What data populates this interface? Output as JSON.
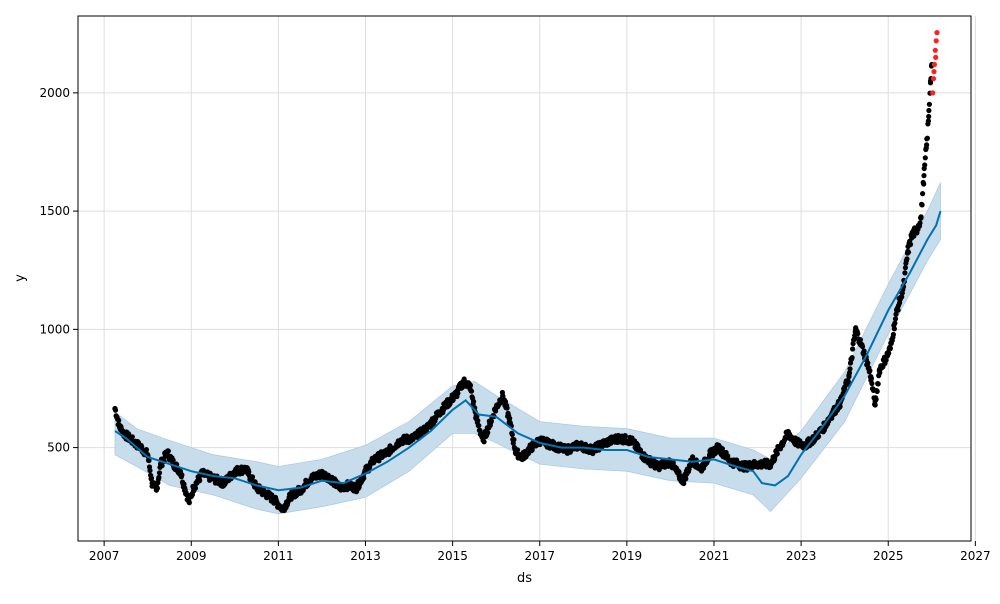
{
  "chart_data": {
    "type": "scatter",
    "title": "",
    "xlabel": "ds",
    "ylabel": "y",
    "xlim": [
      2006.4,
      2026.9
    ],
    "ylim": [
      105,
      2325
    ],
    "grid": true,
    "x_ticks": [
      "2007",
      "2009",
      "2011",
      "2013",
      "2015",
      "2017",
      "2019",
      "2021",
      "2023",
      "2025",
      "2027"
    ],
    "y_ticks": [
      "500",
      "1000",
      "1500",
      "2000"
    ],
    "colors": {
      "observed": "#000000",
      "outlier": "#ff2020",
      "forecast": "#0072b2",
      "interval": "#c6dcec"
    },
    "series": [
      {
        "kind": "observed",
        "points": [
          [
            2007.25,
            665
          ],
          [
            2007.35,
            590
          ],
          [
            2007.45,
            560
          ],
          [
            2007.55,
            545
          ],
          [
            2007.7,
            520
          ],
          [
            2007.85,
            500
          ],
          [
            2008.0,
            470
          ],
          [
            2008.1,
            350
          ],
          [
            2008.2,
            320
          ],
          [
            2008.3,
            430
          ],
          [
            2008.45,
            480
          ],
          [
            2008.6,
            430
          ],
          [
            2008.75,
            400
          ],
          [
            2008.85,
            330
          ],
          [
            2008.95,
            270
          ],
          [
            2009.05,
            330
          ],
          [
            2009.25,
            390
          ],
          [
            2009.5,
            370
          ],
          [
            2009.75,
            350
          ],
          [
            2010.0,
            400
          ],
          [
            2010.25,
            410
          ],
          [
            2010.5,
            330
          ],
          [
            2010.75,
            300
          ],
          [
            2010.9,
            280
          ],
          [
            2011.1,
            240
          ],
          [
            2011.3,
            300
          ],
          [
            2011.5,
            320
          ],
          [
            2011.75,
            370
          ],
          [
            2012.0,
            390
          ],
          [
            2012.2,
            370
          ],
          [
            2012.4,
            330
          ],
          [
            2012.6,
            340
          ],
          [
            2012.8,
            330
          ],
          [
            2013.0,
            400
          ],
          [
            2013.2,
            450
          ],
          [
            2013.5,
            480
          ],
          [
            2013.8,
            530
          ],
          [
            2014.1,
            540
          ],
          [
            2014.4,
            580
          ],
          [
            2014.7,
            650
          ],
          [
            2014.9,
            690
          ],
          [
            2015.1,
            730
          ],
          [
            2015.25,
            780
          ],
          [
            2015.4,
            760
          ],
          [
            2015.55,
            620
          ],
          [
            2015.7,
            530
          ],
          [
            2015.85,
            600
          ],
          [
            2016.0,
            670
          ],
          [
            2016.15,
            720
          ],
          [
            2016.3,
            620
          ],
          [
            2016.45,
            480
          ],
          [
            2016.6,
            460
          ],
          [
            2016.8,
            500
          ],
          [
            2017.0,
            530
          ],
          [
            2017.3,
            510
          ],
          [
            2017.6,
            490
          ],
          [
            2017.9,
            510
          ],
          [
            2018.2,
            490
          ],
          [
            2018.5,
            520
          ],
          [
            2018.8,
            540
          ],
          [
            2019.1,
            530
          ],
          [
            2019.4,
            460
          ],
          [
            2019.7,
            420
          ],
          [
            2020.0,
            440
          ],
          [
            2020.2,
            380
          ],
          [
            2020.3,
            360
          ],
          [
            2020.5,
            450
          ],
          [
            2020.7,
            410
          ],
          [
            2020.9,
            470
          ],
          [
            2021.1,
            500
          ],
          [
            2021.4,
            440
          ],
          [
            2021.7,
            420
          ],
          [
            2022.0,
            430
          ],
          [
            2022.3,
            430
          ],
          [
            2022.5,
            500
          ],
          [
            2022.7,
            560
          ],
          [
            2022.9,
            520
          ],
          [
            2023.1,
            510
          ],
          [
            2023.3,
            540
          ],
          [
            2023.5,
            580
          ],
          [
            2023.7,
            640
          ],
          [
            2023.9,
            690
          ],
          [
            2024.1,
            800
          ],
          [
            2024.25,
            1000
          ],
          [
            2024.35,
            950
          ],
          [
            2024.5,
            870
          ],
          [
            2024.6,
            800
          ],
          [
            2024.7,
            680
          ],
          [
            2024.8,
            830
          ],
          [
            2024.95,
            880
          ],
          [
            2025.05,
            920
          ],
          [
            2025.2,
            1080
          ],
          [
            2025.35,
            1180
          ],
          [
            2025.45,
            1330
          ],
          [
            2025.55,
            1400
          ],
          [
            2025.65,
            1420
          ],
          [
            2025.75,
            1470
          ],
          [
            2025.82,
            1650
          ],
          [
            2025.88,
            1780
          ],
          [
            2025.93,
            1900
          ],
          [
            2025.97,
            2050
          ],
          [
            2026.0,
            2120
          ]
        ]
      },
      {
        "kind": "outlier",
        "points": [
          [
            2026.02,
            2000
          ],
          [
            2026.04,
            2060
          ],
          [
            2026.06,
            2120
          ],
          [
            2026.08,
            2180
          ],
          [
            2026.1,
            2220
          ],
          [
            2026.12,
            2255
          ],
          [
            2026.05,
            2090
          ],
          [
            2026.09,
            2150
          ]
        ]
      },
      {
        "kind": "forecast",
        "points": [
          [
            2007.25,
            570
          ],
          [
            2007.5,
            540
          ],
          [
            2007.75,
            500
          ],
          [
            2008.0,
            460
          ],
          [
            2008.5,
            430
          ],
          [
            2009.0,
            400
          ],
          [
            2009.5,
            380
          ],
          [
            2010.0,
            370
          ],
          [
            2010.5,
            340
          ],
          [
            2011.0,
            320
          ],
          [
            2011.5,
            330
          ],
          [
            2012.0,
            360
          ],
          [
            2012.5,
            350
          ],
          [
            2013.0,
            390
          ],
          [
            2013.5,
            440
          ],
          [
            2014.0,
            500
          ],
          [
            2014.5,
            570
          ],
          [
            2015.0,
            660
          ],
          [
            2015.3,
            700
          ],
          [
            2015.6,
            640
          ],
          [
            2016.0,
            630
          ],
          [
            2016.5,
            560
          ],
          [
            2017.0,
            520
          ],
          [
            2017.5,
            500
          ],
          [
            2018.0,
            500
          ],
          [
            2018.5,
            490
          ],
          [
            2019.0,
            490
          ],
          [
            2019.5,
            460
          ],
          [
            2020.0,
            450
          ],
          [
            2020.5,
            440
          ],
          [
            2021.0,
            450
          ],
          [
            2021.5,
            420
          ],
          [
            2021.9,
            400
          ],
          [
            2022.1,
            350
          ],
          [
            2022.4,
            340
          ],
          [
            2022.7,
            380
          ],
          [
            2023.0,
            470
          ],
          [
            2023.5,
            590
          ],
          [
            2024.0,
            720
          ],
          [
            2024.5,
            890
          ],
          [
            2025.0,
            1080
          ],
          [
            2025.5,
            1240
          ],
          [
            2025.9,
            1380
          ],
          [
            2026.1,
            1440
          ],
          [
            2026.2,
            1500
          ]
        ]
      },
      {
        "kind": "interval",
        "upper": [
          [
            2007.25,
            650
          ],
          [
            2007.75,
            580
          ],
          [
            2008.5,
            530
          ],
          [
            2009.5,
            470
          ],
          [
            2010.5,
            440
          ],
          [
            2011.0,
            420
          ],
          [
            2012.0,
            450
          ],
          [
            2013.0,
            510
          ],
          [
            2014.0,
            610
          ],
          [
            2015.0,
            760
          ],
          [
            2015.5,
            780
          ],
          [
            2016.0,
            720
          ],
          [
            2017.0,
            610
          ],
          [
            2018.0,
            590
          ],
          [
            2019.0,
            580
          ],
          [
            2020.0,
            540
          ],
          [
            2021.0,
            540
          ],
          [
            2021.9,
            490
          ],
          [
            2022.3,
            450
          ],
          [
            2023.0,
            570
          ],
          [
            2024.0,
            820
          ],
          [
            2025.0,
            1190
          ],
          [
            2025.9,
            1500
          ],
          [
            2026.2,
            1620
          ]
        ],
        "lower": [
          [
            2007.25,
            470
          ],
          [
            2007.75,
            420
          ],
          [
            2008.5,
            340
          ],
          [
            2009.5,
            300
          ],
          [
            2010.5,
            240
          ],
          [
            2011.0,
            220
          ],
          [
            2012.0,
            250
          ],
          [
            2013.0,
            290
          ],
          [
            2014.0,
            400
          ],
          [
            2015.0,
            560
          ],
          [
            2015.5,
            560
          ],
          [
            2016.0,
            520
          ],
          [
            2017.0,
            430
          ],
          [
            2018.0,
            410
          ],
          [
            2019.0,
            400
          ],
          [
            2020.0,
            360
          ],
          [
            2021.0,
            350
          ],
          [
            2021.9,
            300
          ],
          [
            2022.3,
            230
          ],
          [
            2023.0,
            370
          ],
          [
            2024.0,
            610
          ],
          [
            2025.0,
            980
          ],
          [
            2025.9,
            1290
          ],
          [
            2026.2,
            1380
          ]
        ]
      }
    ]
  }
}
